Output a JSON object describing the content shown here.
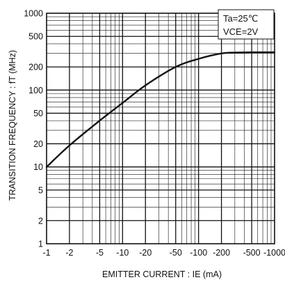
{
  "chart_data": {
    "type": "line",
    "title": "",
    "xlabel": "EMITTER CURRENT : IE (mA)",
    "ylabel": "TRANSITION FREQUENCY : fT (MHz)",
    "x_scale": "log",
    "y_scale": "log",
    "xlim": [
      1,
      1000
    ],
    "ylim": [
      1,
      1000
    ],
    "grid": true,
    "x_tick_values": [
      1,
      2,
      5,
      10,
      20,
      50,
      100,
      200,
      500,
      1000
    ],
    "x_tick_labels": [
      "-1",
      "-2",
      "-5",
      "-10",
      "-20",
      "-50",
      "-100",
      "-200",
      "-500",
      "-1000"
    ],
    "y_tick_values": [
      1,
      2,
      5,
      10,
      20,
      50,
      100,
      200,
      500,
      1000
    ],
    "y_tick_labels": [
      "1",
      "2",
      "5",
      "10",
      "20",
      "50",
      "100",
      "200",
      "500",
      "1000"
    ],
    "annotations": [
      "Ta=25℃",
      "VCE=2V"
    ],
    "series": [
      {
        "x": [
          1,
          2,
          5,
          10,
          20,
          50,
          100,
          200,
          300,
          500,
          1000
        ],
        "y": [
          10,
          19,
          40,
          68,
          115,
          200,
          255,
          300,
          308,
          310,
          310
        ]
      }
    ]
  }
}
